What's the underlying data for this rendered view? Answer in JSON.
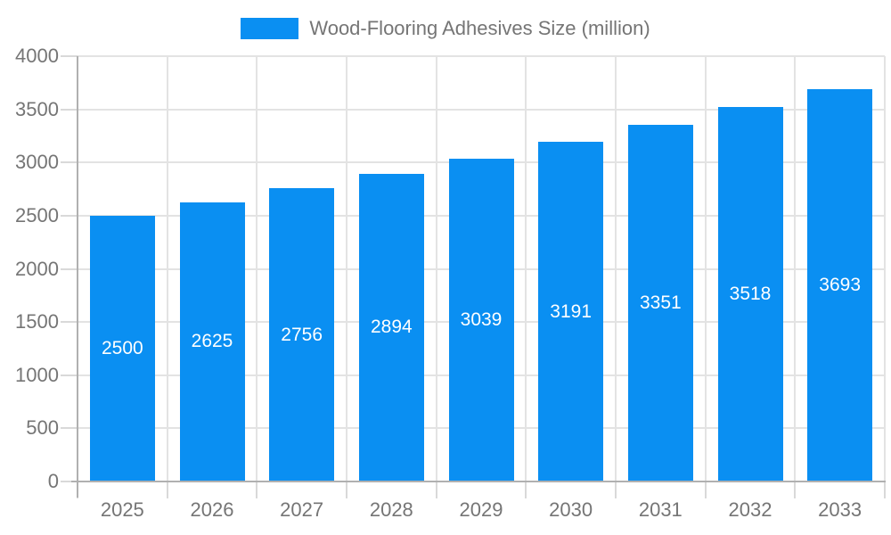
{
  "chart_data": {
    "type": "bar",
    "title": "Wood-Flooring Adhesives Size (million)",
    "series_name": "Wood-Flooring Adhesives Size (million)",
    "categories": [
      "2025",
      "2026",
      "2027",
      "2028",
      "2029",
      "2030",
      "2031",
      "2032",
      "2033"
    ],
    "values": [
      2500,
      2625,
      2756,
      2894,
      3039,
      3191,
      3351,
      3518,
      3693
    ],
    "xlabel": "",
    "ylabel": "",
    "ylim": [
      0,
      4000
    ],
    "yticks": [
      0,
      500,
      1000,
      1500,
      2000,
      2500,
      3000,
      3500,
      4000
    ],
    "grid": true,
    "legend_position": "top-center",
    "value_labels": "inside-center",
    "colors": {
      "bar": "#0a8ff2",
      "value_label": "#ffffff",
      "axis_text": "#757575",
      "grid_line": "#e3e3e3",
      "tick_line": "#d9d9d9",
      "axis_line": "#b0b0b0",
      "background": "#ffffff"
    }
  },
  "legend": {
    "label": "Wood-Flooring Adhesives Size (million)"
  }
}
